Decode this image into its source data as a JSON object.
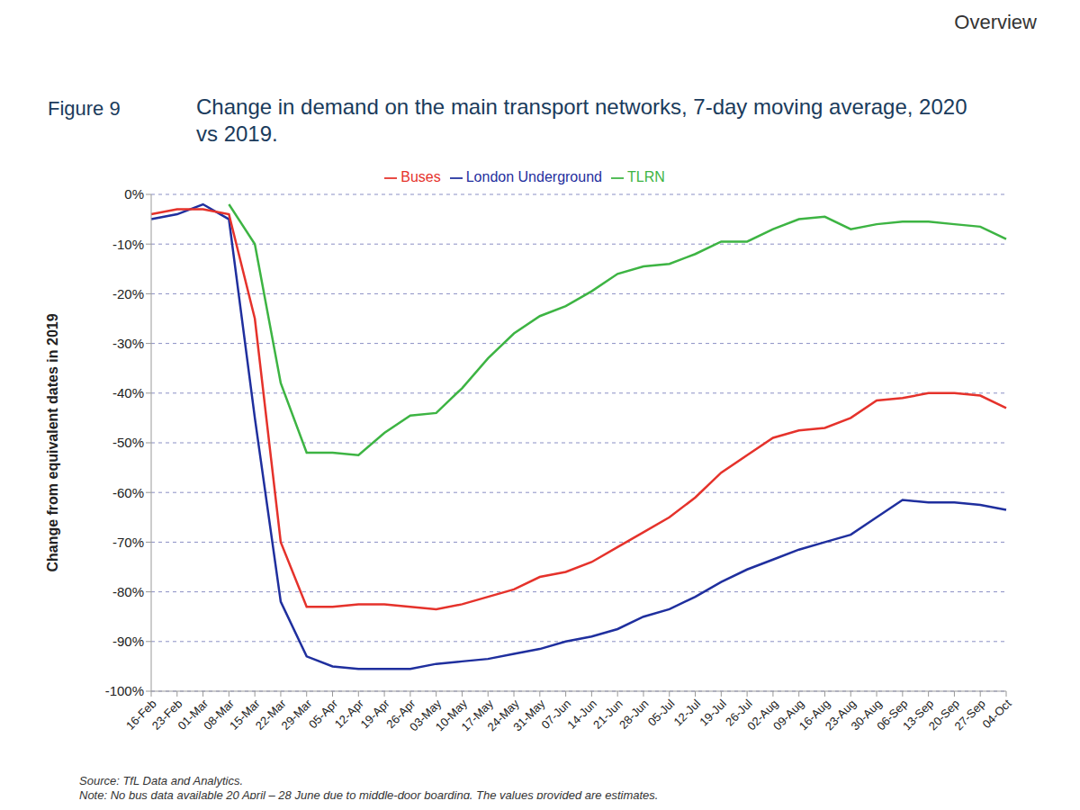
{
  "chart_data": {
    "type": "line",
    "title": "Change in demand on the main transport networks, 7-day moving average, 2020 vs 2019.",
    "annotations": {
      "page_header": "Overview",
      "figure": "Figure 9",
      "source": "Source: TfL Data and Analytics.",
      "note": "Note: No bus data available 20 April – 28 June due to middle-door boarding. The values provided are estimates."
    },
    "y_label": "Change from equivalent dates in 2019",
    "categories": [
      "16-Feb",
      "23-Feb",
      "01-Mar",
      "08-Mar",
      "15-Mar",
      "22-Mar",
      "29-Mar",
      "05-Apr",
      "12-Apr",
      "19-Apr",
      "26-Apr",
      "03-May",
      "10-May",
      "17-May",
      "24-May",
      "31-May",
      "07-Jun",
      "14-Jun",
      "21-Jun",
      "28-Jun",
      "05-Jul",
      "12-Jul",
      "19-Jul",
      "26-Jul",
      "02-Aug",
      "09-Aug",
      "16-Aug",
      "23-Aug",
      "30-Aug",
      "06-Sep",
      "13-Sep",
      "20-Sep",
      "27-Sep",
      "04-Oct"
    ],
    "series": [
      {
        "name": "London Underground",
        "color": "#1f2f9e",
        "values": [
          -5,
          -4,
          -2,
          -5,
          -45,
          -82,
          -93,
          -95,
          -95.5,
          -95.5,
          -95.5,
          -94.5,
          -94,
          -93.5,
          -92.5,
          -91.5,
          -90,
          -89,
          -87.5,
          -85,
          -83.5,
          -81,
          -78,
          -75.5,
          -73.5,
          -71.5,
          -70,
          -68.5,
          -65,
          -61.5,
          -62,
          -62,
          -62.5,
          -63.5
        ]
      },
      {
        "name": "Buses",
        "color": "#e5322b",
        "values": [
          -4,
          -3,
          -3,
          -4,
          -25,
          -70,
          -83,
          -83,
          -82.5,
          -82.5,
          -83,
          -83.5,
          -82.5,
          -81,
          -79.5,
          -77,
          -76,
          -74,
          -71,
          -68,
          -65,
          -61,
          -56,
          -52.5,
          -49,
          -47.5,
          -47,
          -45,
          -41.5,
          -41,
          -40,
          -40,
          -40.5,
          -43
        ]
      },
      {
        "name": "TLRN",
        "color": "#3db443",
        "values": [
          null,
          null,
          null,
          -2,
          -10,
          -38,
          -52,
          -52,
          -52.5,
          -48,
          -44.5,
          -44,
          -39,
          -33,
          -28,
          -24.5,
          -22.5,
          -19.5,
          -16,
          -14.5,
          -14,
          -12,
          -9.5,
          -9.5,
          -7,
          -5,
          -4.5,
          -7,
          -6,
          -5.5,
          -5.5,
          -6,
          -6.5,
          -9
        ]
      }
    ],
    "ylim": [
      -100,
      0
    ],
    "yticks": [
      {
        "value": 0,
        "label": "0%"
      },
      {
        "value": -10,
        "label": "-10%"
      },
      {
        "value": -20,
        "label": "-20%"
      },
      {
        "value": -30,
        "label": "-30%"
      },
      {
        "value": -40,
        "label": "-40%"
      },
      {
        "value": -50,
        "label": "-50%"
      },
      {
        "value": -60,
        "label": "-60%"
      },
      {
        "value": -70,
        "label": "-70%"
      },
      {
        "value": -80,
        "label": "-80%"
      },
      {
        "value": -90,
        "label": "-90%"
      },
      {
        "value": -100,
        "label": "-100%"
      }
    ],
    "grid": true,
    "legend": "top"
  }
}
